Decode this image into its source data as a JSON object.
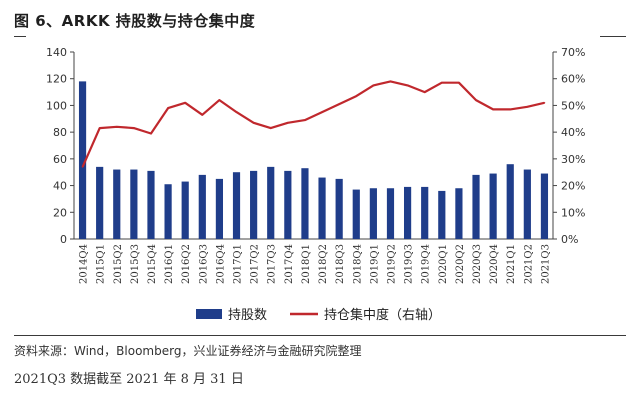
{
  "header": {
    "title": "图 6、ARKK 持股数与持仓集中度"
  },
  "footer": {
    "source": "资料来源：Wind，Bloomberg，兴业证券经济与金融研究院整理",
    "note": "2021Q3 数据截至 2021 年 8 月 31 日"
  },
  "chart_data": {
    "type": "bar+line",
    "categories": [
      "2014Q4",
      "2015Q1",
      "2015Q2",
      "2015Q3",
      "2015Q4",
      "2016Q1",
      "2016Q2",
      "2016Q3",
      "2016Q4",
      "2017Q1",
      "2017Q2",
      "2017Q3",
      "2017Q4",
      "2018Q1",
      "2018Q2",
      "2018Q3",
      "2018Q4",
      "2019Q1",
      "2019Q2",
      "2019Q3",
      "2019Q4",
      "2020Q1",
      "2020Q2",
      "2020Q3",
      "2020Q4",
      "2021Q1",
      "2021Q2",
      "2021Q3"
    ],
    "series": [
      {
        "name": "持股数",
        "type": "bar",
        "axis": "left",
        "color": "#1f3d8a",
        "values": [
          118,
          54,
          52,
          52,
          51,
          41,
          43,
          48,
          45,
          50,
          51,
          54,
          51,
          53,
          46,
          45,
          37,
          38,
          38,
          39,
          39,
          36,
          38,
          48,
          49,
          56,
          52,
          49
        ]
      },
      {
        "name": "持仓集中度（右轴）",
        "type": "line",
        "axis": "right",
        "color": "#c0282d",
        "values": [
          27,
          41.5,
          42,
          41.5,
          39.5,
          49,
          51,
          46.5,
          52,
          47.5,
          43.5,
          41.5,
          43.5,
          44.5,
          47.5,
          50.5,
          53.5,
          57.5,
          59,
          57.5,
          55,
          58.5,
          58.5,
          52,
          48.5,
          48.5,
          49.5,
          51
        ]
      }
    ],
    "left_axis": {
      "min": 0,
      "max": 140,
      "step": 20,
      "ticks": [
        "0",
        "20",
        "40",
        "60",
        "80",
        "100",
        "120",
        "140"
      ]
    },
    "right_axis": {
      "min": 0,
      "max": 70,
      "step": 10,
      "ticks": [
        "0%",
        "10%",
        "20%",
        "30%",
        "40%",
        "50%",
        "60%",
        "70%"
      ]
    },
    "grid": false,
    "legend": "bottom"
  }
}
